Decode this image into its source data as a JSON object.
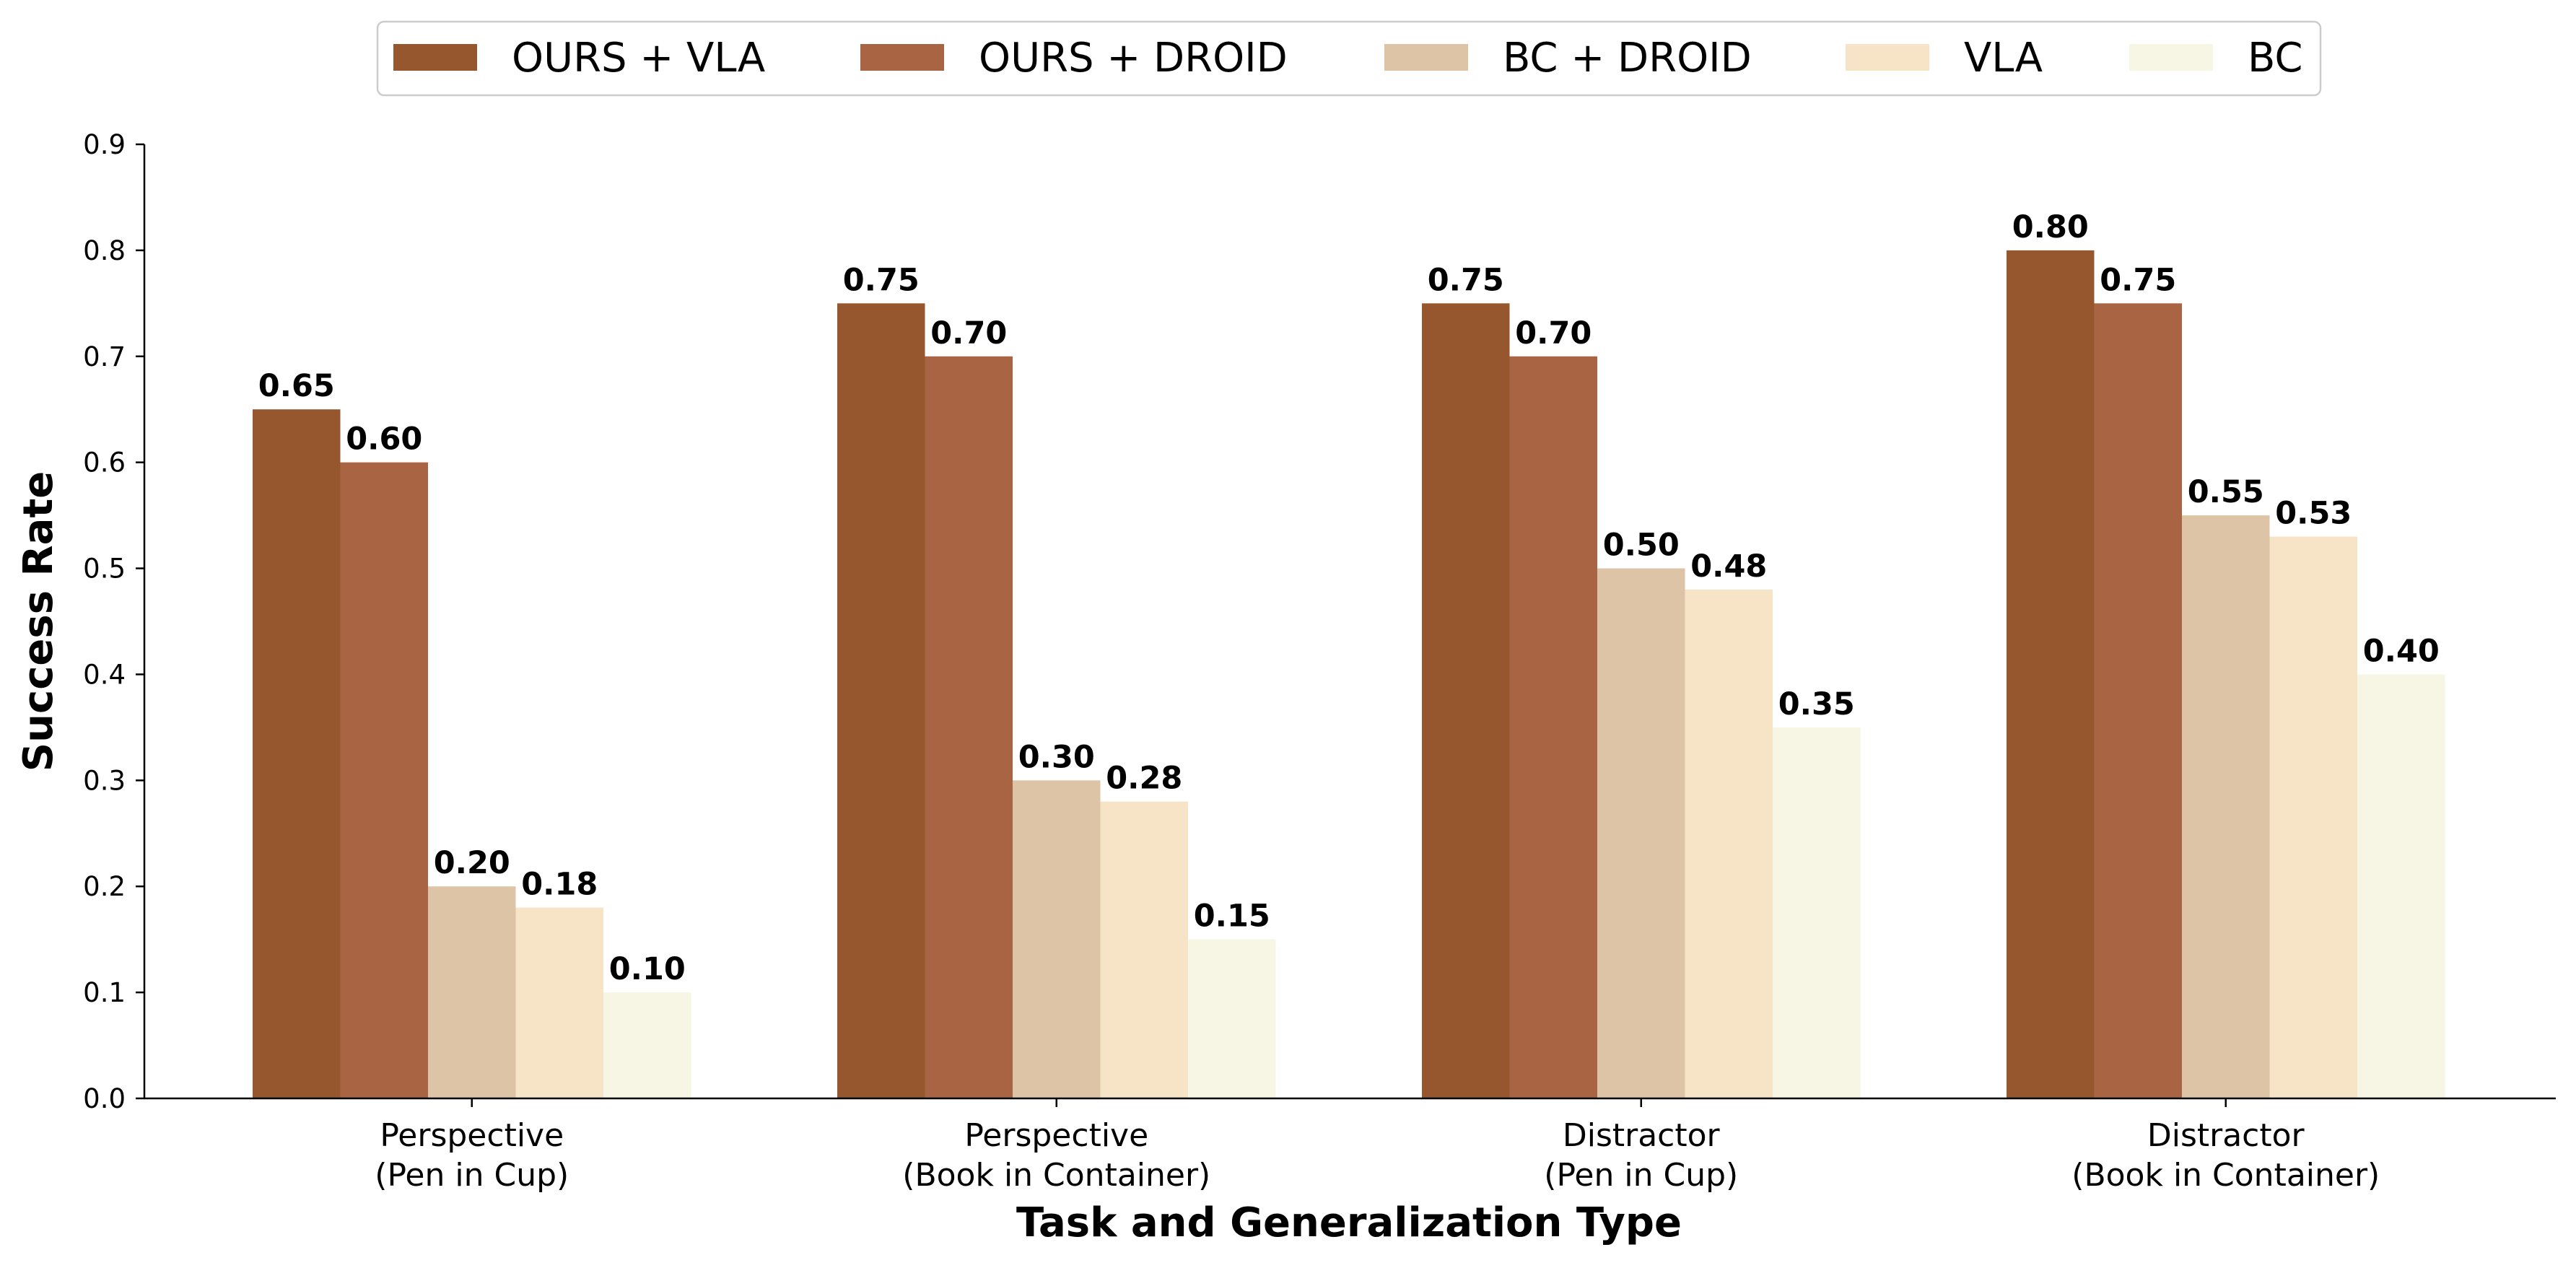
{
  "chart_data": {
    "type": "bar",
    "xlabel": "Task and Generalization Type",
    "ylabel": "Success Rate",
    "ylim": [
      0,
      0.9
    ],
    "yticks": [
      "0.0",
      "0.1",
      "0.2",
      "0.3",
      "0.4",
      "0.5",
      "0.6",
      "0.7",
      "0.8",
      "0.9"
    ],
    "grid": false,
    "legend_position": "top-center",
    "categories": [
      [
        "Perspective",
        "(Pen in Cup)"
      ],
      [
        "Perspective",
        "(Book in Container)"
      ],
      [
        "Distractor",
        "(Pen in Cup)"
      ],
      [
        "Distractor",
        "(Book in Container)"
      ]
    ],
    "series": [
      {
        "name": "OURS + VLA",
        "color": "#96572e",
        "values": [
          0.65,
          0.75,
          0.75,
          0.8
        ],
        "labels": [
          "0.65",
          "0.75",
          "0.75",
          "0.80"
        ]
      },
      {
        "name": "OURS + DROID",
        "color": "#a96444",
        "values": [
          0.6,
          0.7,
          0.7,
          0.75
        ],
        "labels": [
          "0.60",
          "0.70",
          "0.70",
          "0.75"
        ]
      },
      {
        "name": "BC + DROID",
        "color": "#ddc4a6",
        "values": [
          0.2,
          0.3,
          0.5,
          0.55
        ],
        "labels": [
          "0.20",
          "0.30",
          "0.50",
          "0.55"
        ]
      },
      {
        "name": "VLA",
        "color": "#f7e4c6",
        "values": [
          0.18,
          0.28,
          0.48,
          0.53
        ],
        "labels": [
          "0.18",
          "0.28",
          "0.48",
          "0.53"
        ]
      },
      {
        "name": "BC",
        "color": "#f7f5e4",
        "values": [
          0.1,
          0.15,
          0.35,
          0.4
        ],
        "labels": [
          "0.10",
          "0.15",
          "0.35",
          "0.40"
        ]
      }
    ]
  }
}
